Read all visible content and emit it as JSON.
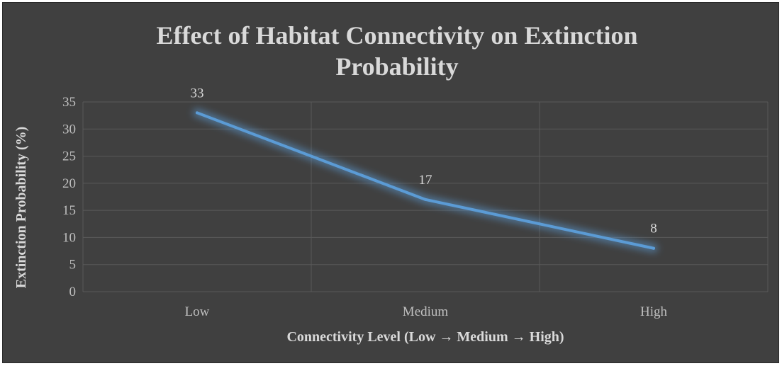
{
  "chart_data": {
    "type": "line",
    "title_lines": [
      "Effect of Habitat Connectivity on Extinction",
      "Probability"
    ],
    "xlabel": "Connectivity Level (Low → Medium → High)",
    "ylabel": "Extinction Probability (%)",
    "categories": [
      "Low",
      "Medium",
      "High"
    ],
    "values": [
      33,
      17,
      8
    ],
    "data_labels": [
      "33",
      "17",
      "8"
    ],
    "ylim": [
      0,
      35
    ],
    "yticks": [
      0,
      5,
      10,
      15,
      20,
      25,
      30,
      35
    ],
    "ytick_labels": [
      "0",
      "5",
      "10",
      "15",
      "20",
      "25",
      "30",
      "35"
    ],
    "grid": true,
    "legend": "none"
  },
  "colors": {
    "background": "#404040",
    "line": "#5b9bd5",
    "glow": "#5b9bd5",
    "text": "#d9d9d9",
    "grid": "#595959"
  }
}
